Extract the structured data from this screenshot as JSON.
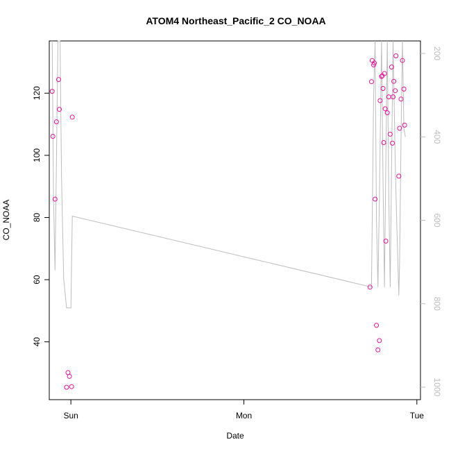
{
  "chart_data": {
    "type": "scatter",
    "title": "ATOM4 Northeast_Pacific_2 CO_NOAA",
    "xlabel": "Date",
    "ylabel": "CO_NOAA",
    "x_unit": "hours from Sun 00:00",
    "xlim": [
      -3.0,
      48.5
    ],
    "ylim": [
      21.4,
      136.8
    ],
    "x_ticks": [
      {
        "value": 0,
        "label": "Sun"
      },
      {
        "value": 24,
        "label": "Mon"
      },
      {
        "value": 48,
        "label": "Tue"
      }
    ],
    "y_ticks": [
      40,
      60,
      80,
      100,
      120
    ],
    "y2_ticks": [
      200,
      400,
      600,
      800,
      1000
    ],
    "y2lim": [
      1030,
      170
    ],
    "grid": false,
    "series": [
      {
        "axis": "left",
        "marker": "open-circle",
        "color": "#e6149b",
        "points": [
          [
            -2.6,
            120.6
          ],
          [
            -2.5,
            106.1
          ],
          [
            -2.2,
            85.9
          ],
          [
            -2.0,
            110.8
          ],
          [
            -1.7,
            124.4
          ],
          [
            -1.6,
            114.8
          ],
          [
            -0.6,
            25.4
          ],
          [
            -0.4,
            30.1
          ],
          [
            -0.2,
            28.9
          ],
          [
            0.1,
            25.6
          ],
          [
            0.2,
            112.3
          ],
          [
            41.5,
            57.6
          ],
          [
            41.7,
            123.7
          ],
          [
            41.8,
            130.5
          ],
          [
            42.0,
            129.1
          ],
          [
            42.1,
            129.7
          ],
          [
            42.2,
            85.9
          ],
          [
            42.4,
            45.3
          ],
          [
            42.6,
            37.4
          ],
          [
            42.8,
            40.4
          ],
          [
            42.9,
            117.6
          ],
          [
            43.1,
            125.4
          ],
          [
            43.2,
            125.6
          ],
          [
            43.3,
            121.5
          ],
          [
            43.4,
            104.1
          ],
          [
            43.5,
            126.3
          ],
          [
            43.6,
            115.0
          ],
          [
            43.7,
            72.4
          ],
          [
            43.9,
            113.7
          ],
          [
            44.1,
            118.8
          ],
          [
            44.3,
            106.8
          ],
          [
            44.5,
            128.4
          ],
          [
            44.6,
            103.9
          ],
          [
            44.7,
            118.8
          ],
          [
            44.8,
            123.8
          ],
          [
            45.0,
            120.8
          ],
          [
            45.1,
            132.0
          ],
          [
            45.5,
            93.3
          ],
          [
            45.6,
            108.7
          ],
          [
            45.8,
            118.1
          ],
          [
            46.0,
            130.5
          ],
          [
            46.2,
            121.3
          ],
          [
            46.3,
            109.7
          ]
        ]
      },
      {
        "axis": "right",
        "style": "line",
        "color": "#bdbdbd",
        "points": [
          [
            -2.6,
            170
          ],
          [
            -2.4,
            550
          ],
          [
            -2.2,
            720
          ],
          [
            -2.0,
            450
          ],
          [
            -1.8,
            170
          ],
          [
            -1.5,
            170
          ],
          [
            -1.3,
            500
          ],
          [
            -1.0,
            740
          ],
          [
            -0.6,
            810
          ],
          [
            -0.6,
            810
          ],
          [
            0.0,
            810
          ],
          [
            0.2,
            590
          ],
          [
            41.7,
            760
          ],
          [
            42.0,
            300
          ],
          [
            42.2,
            170
          ],
          [
            42.4,
            600
          ],
          [
            42.6,
            760
          ],
          [
            42.8,
            550
          ],
          [
            43.1,
            170
          ],
          [
            43.3,
            500
          ],
          [
            43.5,
            760
          ],
          [
            43.7,
            460
          ],
          [
            43.9,
            170
          ],
          [
            44.1,
            540
          ],
          [
            44.3,
            760
          ],
          [
            44.5,
            460
          ],
          [
            44.7,
            170
          ],
          [
            45.0,
            460
          ],
          [
            45.2,
            600
          ],
          [
            45.5,
            780
          ],
          [
            45.6,
            700
          ],
          [
            45.8,
            400
          ],
          [
            46.0,
            170
          ],
          [
            46.2,
            380
          ],
          [
            46.4,
            400
          ]
        ]
      }
    ]
  }
}
